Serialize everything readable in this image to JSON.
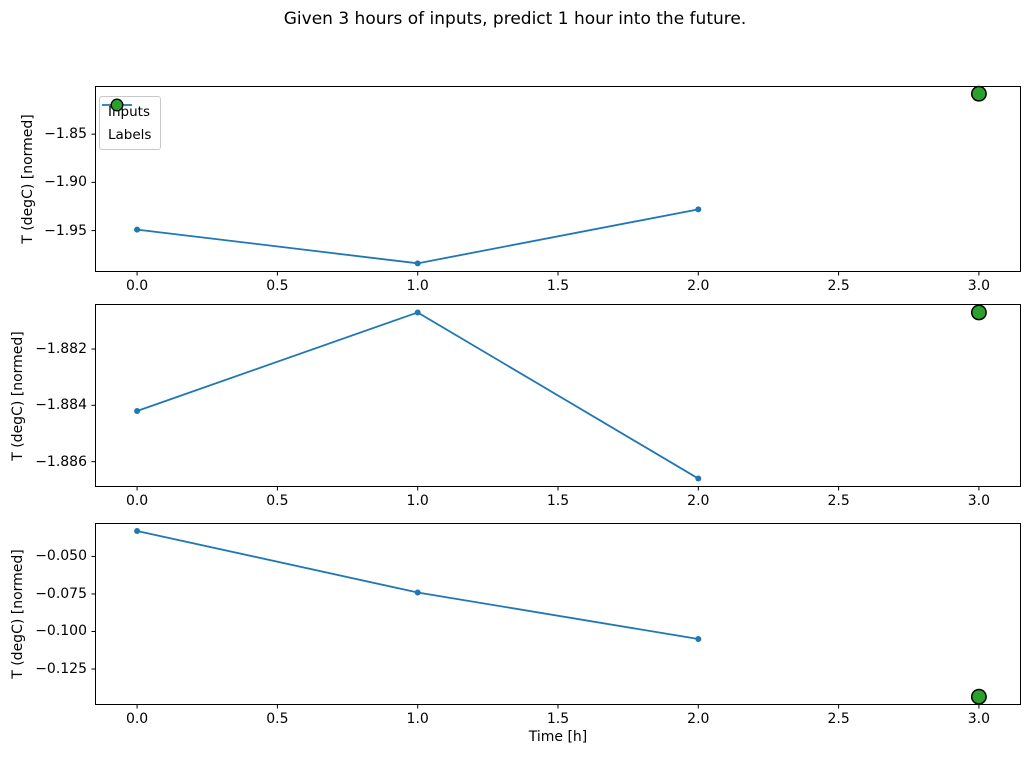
{
  "title": "Given 3 hours of inputs, predict 1 hour into the future.",
  "xlabel": "Time [h]",
  "colors": {
    "inputs_line": "#1f77b4",
    "labels_fill": "#2ca02c",
    "labels_edge": "#000000",
    "axes": "#000000",
    "text": "#000000",
    "legend_border": "#c8c8c8"
  },
  "legend": {
    "items": [
      {
        "label": "Inputs",
        "swatch": "line-dot-icon"
      },
      {
        "label": "Labels",
        "swatch": "circle-icon"
      }
    ]
  },
  "chart_data": [
    {
      "type": "line",
      "title": "",
      "xlabel": "",
      "ylabel": "T (degC) [normed]",
      "grid": false,
      "legend_position": "upper-left",
      "xlim": [
        -0.15,
        3.15
      ],
      "ylim": [
        -1.993,
        -1.8
      ],
      "xtick_values": [
        0.0,
        0.5,
        1.0,
        1.5,
        2.0,
        2.5,
        3.0
      ],
      "xtick_labels": [
        "0.0",
        "0.5",
        "1.0",
        "1.5",
        "2.0",
        "2.5",
        "3.0"
      ],
      "ytick_values": [
        -1.85,
        -1.9,
        -1.95
      ],
      "ytick_labels": [
        "−1.85",
        "−1.90",
        "−1.95"
      ],
      "series": [
        {
          "name": "Inputs",
          "type": "line",
          "x": [
            0.0,
            1.0,
            2.0
          ],
          "y": [
            -1.949,
            -1.984,
            -1.928
          ]
        },
        {
          "name": "Labels",
          "type": "scatter",
          "x": [
            3.0
          ],
          "y": [
            -1.808
          ]
        }
      ]
    },
    {
      "type": "line",
      "title": "",
      "xlabel": "",
      "ylabel": "T (degC) [normed]",
      "grid": false,
      "legend_position": "none",
      "xlim": [
        -0.15,
        3.15
      ],
      "ylim": [
        -1.8869,
        -1.8804
      ],
      "xtick_values": [
        0.0,
        0.5,
        1.0,
        1.5,
        2.0,
        2.5,
        3.0
      ],
      "xtick_labels": [
        "0.0",
        "0.5",
        "1.0",
        "1.5",
        "2.0",
        "2.5",
        "3.0"
      ],
      "ytick_values": [
        -1.882,
        -1.884,
        -1.886
      ],
      "ytick_labels": [
        "−1.882",
        "−1.884",
        "−1.886"
      ],
      "series": [
        {
          "name": "Inputs",
          "type": "line",
          "x": [
            0.0,
            1.0,
            2.0
          ],
          "y": [
            -1.8842,
            -1.8807,
            -1.8866
          ]
        },
        {
          "name": "Labels",
          "type": "scatter",
          "x": [
            3.0
          ],
          "y": [
            -1.8807
          ]
        }
      ]
    },
    {
      "type": "line",
      "title": "",
      "xlabel": "Time [h]",
      "ylabel": "T (degC) [normed]",
      "grid": false,
      "legend_position": "none",
      "xlim": [
        -0.15,
        3.15
      ],
      "ylim": [
        -0.149,
        -0.0277
      ],
      "xtick_values": [
        0.0,
        0.5,
        1.0,
        1.5,
        2.0,
        2.5,
        3.0
      ],
      "xtick_labels": [
        "0.0",
        "0.5",
        "1.0",
        "1.5",
        "2.0",
        "2.5",
        "3.0"
      ],
      "ytick_values": [
        -0.05,
        -0.075,
        -0.1,
        -0.125
      ],
      "ytick_labels": [
        "−0.050",
        "−0.075",
        "−0.100",
        "−0.125"
      ],
      "series": [
        {
          "name": "Inputs",
          "type": "line",
          "x": [
            0.0,
            1.0,
            2.0
          ],
          "y": [
            -0.033,
            -0.074,
            -0.105
          ]
        },
        {
          "name": "Labels",
          "type": "scatter",
          "x": [
            3.0
          ],
          "y": [
            -0.1435
          ]
        }
      ]
    }
  ]
}
